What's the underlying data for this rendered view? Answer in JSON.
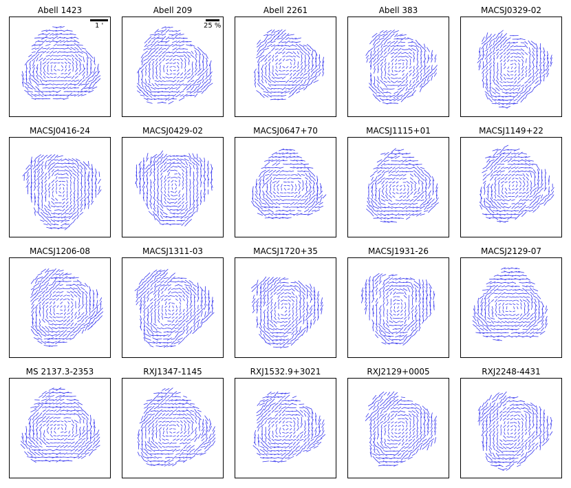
{
  "figure": {
    "stick_color": "#3333ee",
    "panels": [
      {
        "title": "Abell 1423"
      },
      {
        "title": "Abell 209"
      },
      {
        "title": "Abell 2261"
      },
      {
        "title": "Abell 383"
      },
      {
        "title": "MACSJ0329-02"
      },
      {
        "title": "MACSJ0416-24"
      },
      {
        "title": "MACSJ0429-02"
      },
      {
        "title": "MACSJ0647+70"
      },
      {
        "title": "MACSJ1115+01"
      },
      {
        "title": "MACSJ1149+22"
      },
      {
        "title": "MACSJ1206-08"
      },
      {
        "title": "MACSJ1311-03"
      },
      {
        "title": "MACSJ1720+35"
      },
      {
        "title": "MACSJ1931-26"
      },
      {
        "title": "MACSJ2129-07"
      },
      {
        "title": "MS 2137.3-2353"
      },
      {
        "title": "RXJ1347-1145"
      },
      {
        "title": "RXJ1532.9+3021"
      },
      {
        "title": "RXJ2129+0005"
      },
      {
        "title": "RXJ2248-4431"
      }
    ],
    "scale_bars": {
      "length_label": "1 '",
      "ellipticity_label": "25 %"
    }
  }
}
